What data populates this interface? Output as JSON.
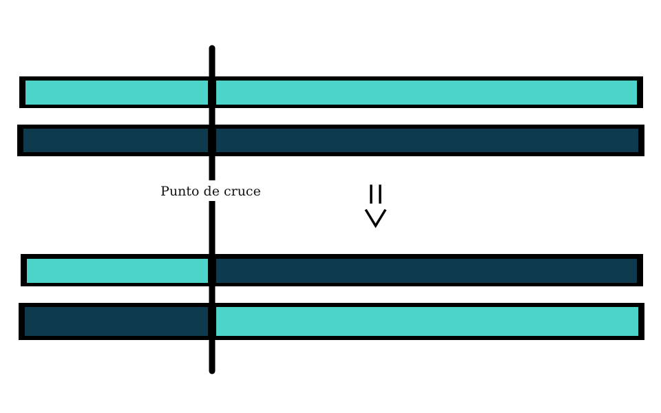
{
  "diagram": {
    "crossover_label": "Punto de cruce",
    "colors": {
      "light_segment": "#4dd4c9",
      "dark_segment": "#0d3b4d",
      "outline": "#000000",
      "background": "#ffffff"
    },
    "chromosomes_before": [
      {
        "left": "light",
        "right": "light"
      },
      {
        "left": "dark",
        "right": "dark"
      }
    ],
    "chromosomes_after": [
      {
        "left": "light",
        "right": "dark"
      },
      {
        "left": "dark",
        "right": "light"
      }
    ]
  }
}
